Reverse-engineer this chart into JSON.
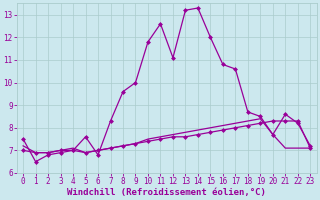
{
  "xlabel": "Windchill (Refroidissement éolien,°C)",
  "background_color": "#cce8ee",
  "grid_color": "#aacccc",
  "line_color": "#990099",
  "xlim": [
    -0.5,
    23.5
  ],
  "ylim": [
    6,
    13.5
  ],
  "yticks": [
    6,
    7,
    8,
    9,
    10,
    11,
    12,
    13
  ],
  "xticks": [
    0,
    1,
    2,
    3,
    4,
    5,
    6,
    7,
    8,
    9,
    10,
    11,
    12,
    13,
    14,
    15,
    16,
    17,
    18,
    19,
    20,
    21,
    22,
    23
  ],
  "series1_x": [
    0,
    1,
    2,
    3,
    4,
    5,
    6,
    7,
    8,
    9,
    10,
    11,
    12,
    13,
    14,
    15,
    16,
    17,
    18,
    19,
    20,
    21,
    22,
    23
  ],
  "series1_y": [
    7.5,
    6.5,
    6.8,
    6.9,
    7.0,
    7.6,
    6.8,
    8.3,
    9.6,
    10.0,
    11.8,
    12.6,
    11.1,
    13.2,
    13.3,
    12.0,
    10.8,
    10.6,
    8.7,
    8.5,
    7.7,
    8.6,
    8.2,
    7.2
  ],
  "series2_x": [
    0,
    1,
    2,
    3,
    4,
    5,
    6,
    7,
    8,
    9,
    10,
    11,
    12,
    13,
    14,
    15,
    16,
    17,
    18,
    19,
    20,
    21,
    22,
    23
  ],
  "series2_y": [
    7.0,
    6.9,
    6.9,
    7.0,
    7.0,
    6.9,
    7.0,
    7.1,
    7.2,
    7.3,
    7.4,
    7.5,
    7.6,
    7.6,
    7.7,
    7.8,
    7.9,
    8.0,
    8.1,
    8.2,
    8.3,
    8.3,
    8.3,
    7.1
  ],
  "series3_x": [
    0,
    1,
    2,
    3,
    4,
    5,
    6,
    7,
    8,
    9,
    10,
    11,
    12,
    13,
    14,
    15,
    16,
    17,
    18,
    19,
    20,
    21,
    22,
    23
  ],
  "series3_y": [
    7.2,
    6.9,
    6.9,
    7.0,
    7.1,
    6.9,
    7.0,
    7.1,
    7.2,
    7.3,
    7.5,
    7.6,
    7.7,
    7.8,
    7.9,
    8.0,
    8.1,
    8.2,
    8.3,
    8.4,
    7.7,
    7.1,
    7.1,
    7.1
  ],
  "marker_size": 2.5,
  "linewidth": 0.9,
  "tick_fontsize": 5.5,
  "xlabel_fontsize": 6.5,
  "xlabel_fontweight": "bold"
}
